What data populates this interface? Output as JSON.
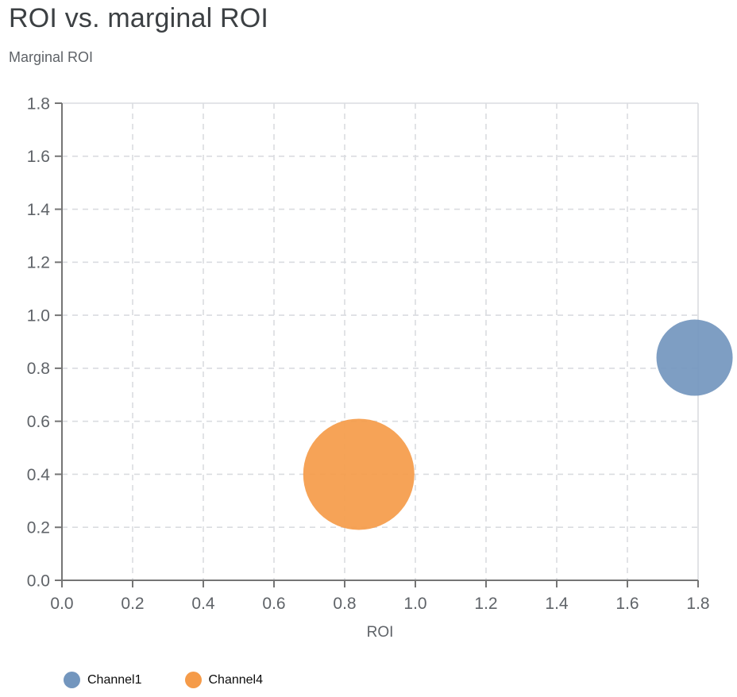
{
  "chart": {
    "title": "ROI vs. marginal ROI"
  },
  "chart_data": {
    "type": "scatter",
    "title": "ROI vs. marginal ROI",
    "xlabel": "ROI",
    "ylabel": "Marginal ROI",
    "xlim": [
      0.0,
      1.8
    ],
    "ylim": [
      0.0,
      1.8
    ],
    "xtick_labels": [
      "0.0",
      "0.2",
      "0.4",
      "0.6",
      "0.8",
      "1.0",
      "1.2",
      "1.4",
      "1.6",
      "1.8"
    ],
    "ytick_labels": [
      "0.0",
      "0.2",
      "0.4",
      "0.6",
      "0.8",
      "1.0",
      "1.2",
      "1.4",
      "1.6",
      "1.8"
    ],
    "grid": true,
    "grid_style": "dashed",
    "legend_position": "bottom-left",
    "series": [
      {
        "name": "Channel1",
        "color": "#7396be",
        "fill_opacity": 0.92,
        "points": [
          {
            "x": 1.79,
            "y": 0.84,
            "radius_px": 48
          }
        ]
      },
      {
        "name": "Channel4",
        "color": "#f59b49",
        "fill_opacity": 0.92,
        "points": [
          {
            "x": 0.84,
            "y": 0.4,
            "radius_px": 70
          }
        ]
      }
    ],
    "colors": {
      "title_text": "#3c4043",
      "axis_text": "#5f6368",
      "spine": "#757575",
      "border": "#dadce0",
      "gridline": "#dadce0"
    }
  }
}
